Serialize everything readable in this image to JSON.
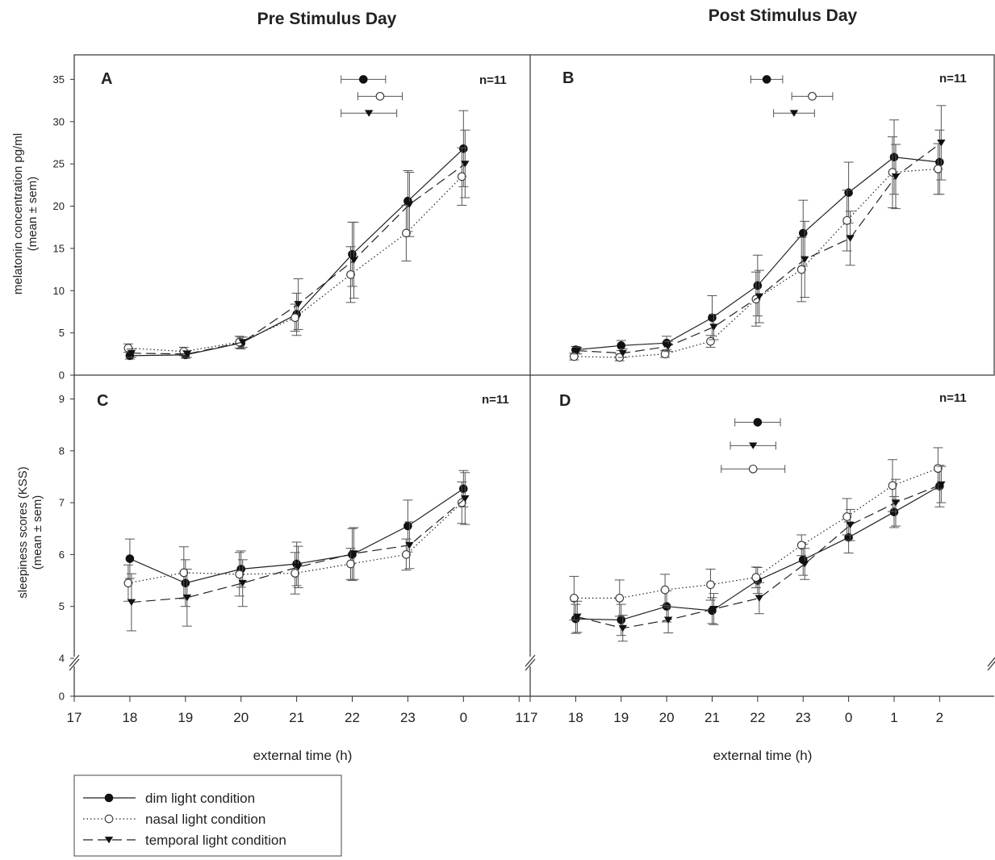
{
  "column_titles": [
    "Pre Stimulus Day",
    "Post Stimulus Day"
  ],
  "legend": [
    {
      "label": "dim light condition",
      "marker": "filled-circle",
      "line": "solid"
    },
    {
      "label": "nasal light condition",
      "marker": "open-circle",
      "line": "dotted"
    },
    {
      "label": "temporal light condition",
      "marker": "filled-triangle-down",
      "line": "dashed"
    }
  ],
  "colors": {
    "line": "#222222",
    "axis": "#333333",
    "error_bar": "#555555"
  },
  "xlabel": "external time (h)",
  "x_ticks_pre": [
    "17",
    "18",
    "19",
    "20",
    "21",
    "22",
    "23",
    "0",
    "1"
  ],
  "x_ticks_post": [
    "17",
    "18",
    "19",
    "20",
    "21",
    "22",
    "23",
    "0",
    "1",
    "2"
  ],
  "ylabel_top": [
    "melatonin concentration pg/ml",
    "(mean ± sem)"
  ],
  "ylabel_bottom": [
    "sleepiness scores (KSS)",
    "(mean ± sem)"
  ],
  "y_ticks_top": [
    "0",
    "5",
    "10",
    "15",
    "20",
    "25",
    "30",
    "35"
  ],
  "y_ticks_bottom": [
    "0",
    "4",
    "5",
    "6",
    "7",
    "8",
    "9"
  ],
  "chart_data": [
    {
      "panel": "A",
      "n_label": "n=11",
      "type": "line",
      "column": "Pre Stimulus Day",
      "x_unit": "external time (h)",
      "x": [
        18,
        19,
        20,
        21,
        22,
        23,
        24
      ],
      "ylim": [
        0,
        37
      ],
      "series": [
        {
          "name": "dim light condition",
          "values": [
            2.3,
            2.4,
            3.8,
            7.2,
            14.3,
            20.6,
            26.8
          ],
          "errors": [
            0.4,
            0.4,
            0.7,
            2.5,
            3.8,
            3.6,
            4.5
          ]
        },
        {
          "name": "nasal light condition",
          "values": [
            3.2,
            2.8,
            3.9,
            6.8,
            11.9,
            16.8,
            23.5
          ],
          "errors": [
            0.5,
            0.5,
            0.7,
            1.6,
            3.3,
            3.3,
            3.4
          ]
        },
        {
          "name": "temporal light condition",
          "values": [
            2.6,
            2.5,
            3.9,
            8.4,
            13.6,
            20.2,
            25.0
          ],
          "errors": [
            0.5,
            0.4,
            0.6,
            3.0,
            4.5,
            3.8,
            4.0
          ]
        }
      ],
      "onset_markers": [
        {
          "series": "dim light condition",
          "x": 22.2,
          "xerr": 0.4,
          "y": 35
        },
        {
          "series": "nasal light condition",
          "x": 22.5,
          "xerr": 0.4,
          "y": 33
        },
        {
          "series": "temporal light condition",
          "x": 22.3,
          "xerr": 0.5,
          "y": 31
        }
      ]
    },
    {
      "panel": "B",
      "n_label": "n=11",
      "type": "line",
      "column": "Post Stimulus Day",
      "x_unit": "external time (h)",
      "x": [
        18,
        19,
        20,
        21,
        22,
        23,
        24,
        25,
        26
      ],
      "ylim": [
        0,
        37
      ],
      "series": [
        {
          "name": "dim light condition",
          "values": [
            3.0,
            3.5,
            3.8,
            6.8,
            10.6,
            16.8,
            21.6,
            25.8,
            25.2
          ],
          "errors": [
            0.4,
            0.6,
            0.8,
            2.6,
            3.6,
            3.9,
            3.6,
            4.4,
            3.8
          ]
        },
        {
          "name": "nasal light condition",
          "values": [
            2.2,
            2.1,
            2.5,
            4.0,
            9.0,
            12.5,
            18.3,
            24.0,
            24.4
          ],
          "errors": [
            0.4,
            0.4,
            0.4,
            0.7,
            3.2,
            3.8,
            3.6,
            4.2,
            3.0
          ]
        },
        {
          "name": "temporal light condition",
          "values": [
            2.9,
            2.6,
            3.4,
            5.7,
            9.3,
            13.7,
            16.2,
            23.5,
            27.5
          ],
          "errors": [
            0.4,
            0.5,
            0.6,
            1.5,
            3.1,
            4.5,
            3.2,
            3.8,
            4.4
          ]
        }
      ],
      "onset_markers": [
        {
          "series": "dim light condition",
          "x": 22.2,
          "xerr": 0.35,
          "y": 35
        },
        {
          "series": "nasal light condition",
          "x": 23.2,
          "xerr": 0.45,
          "y": 33
        },
        {
          "series": "temporal light condition",
          "x": 22.8,
          "xerr": 0.45,
          "y": 31
        }
      ]
    },
    {
      "panel": "C",
      "n_label": "n=11",
      "type": "line",
      "column": "Pre Stimulus Day",
      "x_unit": "external time (h)",
      "x": [
        18,
        19,
        20,
        21,
        22,
        23,
        24
      ],
      "ylim": [
        4,
        9.4
      ],
      "axis_break": true,
      "series": [
        {
          "name": "dim light condition",
          "values": [
            5.92,
            5.45,
            5.72,
            5.82,
            6.0,
            6.55,
            7.27
          ],
          "errors": [
            0.38,
            0.45,
            0.35,
            0.42,
            0.5,
            0.5,
            0.35
          ]
        },
        {
          "name": "nasal light condition",
          "values": [
            5.45,
            5.65,
            5.62,
            5.64,
            5.82,
            6.0,
            7.0
          ],
          "errors": [
            0.35,
            0.5,
            0.42,
            0.4,
            0.3,
            0.3,
            0.4
          ]
        },
        {
          "name": "temporal light condition",
          "values": [
            5.08,
            5.17,
            5.45,
            5.76,
            6.02,
            6.18,
            7.08
          ],
          "errors": [
            0.55,
            0.55,
            0.45,
            0.4,
            0.5,
            0.45,
            0.5
          ]
        }
      ]
    },
    {
      "panel": "D",
      "n_label": "n=11",
      "type": "line",
      "column": "Post Stimulus Day",
      "x_unit": "external time (h)",
      "x": [
        18,
        19,
        20,
        21,
        22,
        23,
        24,
        25,
        26
      ],
      "ylim": [
        4,
        9.4
      ],
      "axis_break": true,
      "series": [
        {
          "name": "dim light condition",
          "values": [
            4.76,
            4.74,
            5.0,
            4.92,
            5.5,
            5.9,
            6.33,
            6.82,
            7.32
          ],
          "errors": [
            0.28,
            0.3,
            0.3,
            0.25,
            0.25,
            0.3,
            0.3,
            0.3,
            0.4
          ]
        },
        {
          "name": "nasal light condition",
          "values": [
            5.16,
            5.16,
            5.32,
            5.42,
            5.56,
            6.18,
            6.73,
            7.33,
            7.66
          ],
          "errors": [
            0.42,
            0.35,
            0.3,
            0.3,
            0.2,
            0.2,
            0.35,
            0.5,
            0.4
          ]
        },
        {
          "name": "temporal light condition",
          "values": [
            4.8,
            4.58,
            4.74,
            4.95,
            5.16,
            5.82,
            6.57,
            7.0,
            7.35
          ],
          "errors": [
            0.3,
            0.25,
            0.25,
            0.3,
            0.3,
            0.3,
            0.3,
            0.45,
            0.35
          ]
        }
      ],
      "onset_markers": [
        {
          "series": "dim light condition",
          "x": 22.0,
          "xerr": 0.5,
          "y": 8.55
        },
        {
          "series": "temporal light condition",
          "x": 21.9,
          "xerr": 0.5,
          "y": 8.1
        },
        {
          "series": "nasal light condition",
          "x": 21.9,
          "xerr": 0.7,
          "y": 7.65
        }
      ]
    }
  ]
}
